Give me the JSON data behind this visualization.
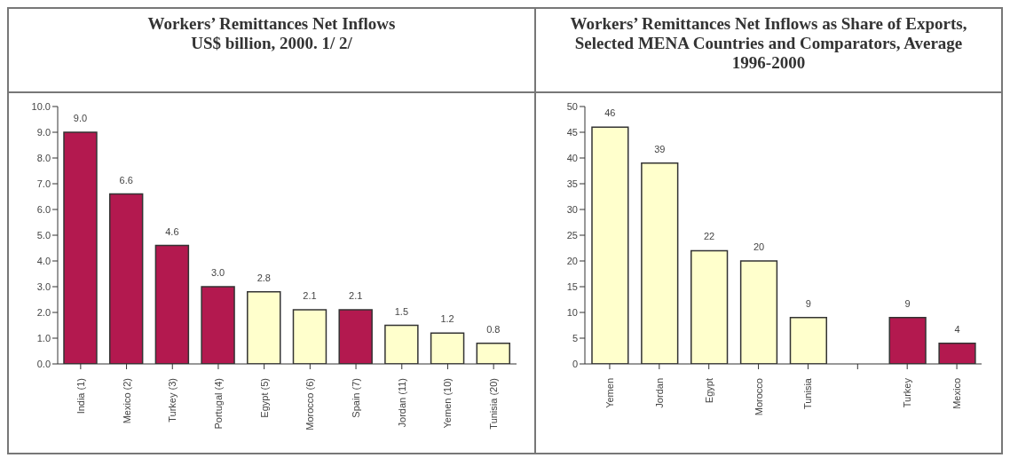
{
  "chart_data": [
    {
      "type": "bar",
      "title": "Workers’ Remittances Net Inflows",
      "subtitle": "US$ billion, 2000.  1/ 2/",
      "categories": [
        "India (1)",
        "Mexico (2)",
        "Turkey (3)",
        "Portugal (4)",
        "Egypt (5)",
        "Morocco (6)",
        "Spain (7)",
        "Jordan (11)",
        "Yemen (10)",
        "Tunisia (20)"
      ],
      "values": [
        9.0,
        6.6,
        4.6,
        3.0,
        2.8,
        2.1,
        2.1,
        1.5,
        1.2,
        0.8
      ],
      "colors": [
        "#b3194f",
        "#b3194f",
        "#b3194f",
        "#b3194f",
        "#ffffcc",
        "#ffffcc",
        "#b3194f",
        "#ffffcc",
        "#ffffcc",
        "#ffffcc"
      ],
      "value_labels": [
        "9.0",
        "6.6",
        "4.6",
        "3.0",
        "2.8",
        "2.1",
        "2.1",
        "1.5",
        "1.2",
        "0.8"
      ],
      "ylim": [
        0,
        10
      ],
      "yticks": [
        {
          "value": 0,
          "label": "0.0"
        },
        {
          "value": 1,
          "label": "1.0"
        },
        {
          "value": 2,
          "label": "2.0"
        },
        {
          "value": 3,
          "label": "3.0"
        },
        {
          "value": 4,
          "label": "4.0"
        },
        {
          "value": 5,
          "label": "5.0"
        },
        {
          "value": 6,
          "label": "6.0"
        },
        {
          "value": 7,
          "label": "7.0"
        },
        {
          "value": 8,
          "label": "8.0"
        },
        {
          "value": 9,
          "label": "9.0"
        },
        {
          "value": 10,
          "label": "10.0"
        }
      ],
      "grid": false,
      "legend": false
    },
    {
      "type": "bar",
      "title": "Workers’ Remittances Net Inflows as Share of Exports, Selected MENA Countries and Comparators, Average 1996-2000",
      "categories": [
        "Yemen",
        "Jordan",
        "Egypt",
        "Morocco",
        "Tunisia",
        null,
        "Turkey",
        "Mexico"
      ],
      "values": [
        46,
        39,
        22,
        20,
        9,
        null,
        9,
        4
      ],
      "colors": [
        "#ffffcc",
        "#ffffcc",
        "#ffffcc",
        "#ffffcc",
        "#ffffcc",
        "#ffffcc",
        "#b3194f",
        "#b3194f"
      ],
      "data_labels": true,
      "ylim": [
        0,
        50
      ],
      "yticks": [
        0,
        5,
        10,
        15,
        20,
        25,
        30,
        35,
        40,
        45,
        50
      ],
      "grid": false,
      "legend": false
    }
  ]
}
